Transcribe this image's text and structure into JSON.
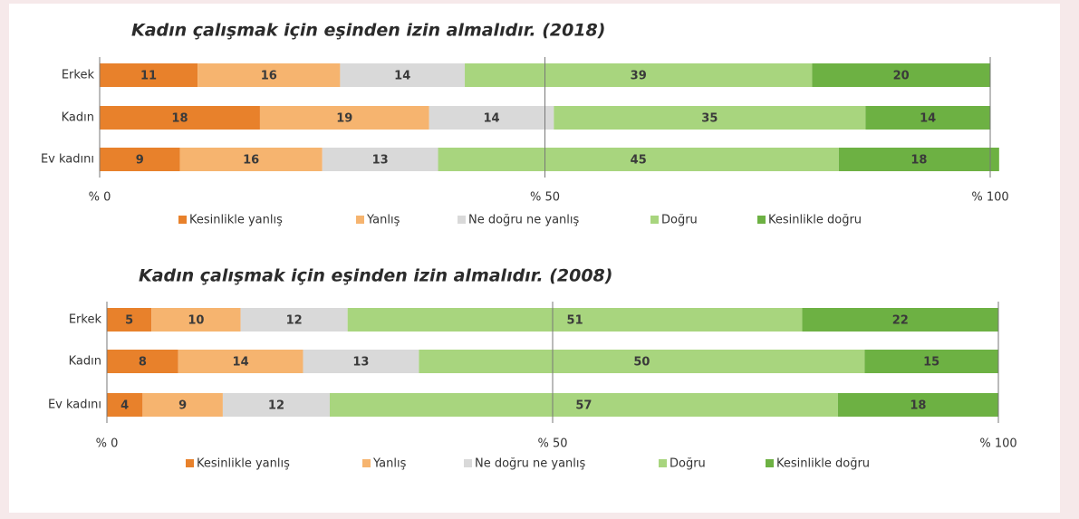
{
  "chart_data": [
    {
      "type": "bar",
      "orientation": "horizontal",
      "stacked": true,
      "title": "Kadın çalışmak için eşinden izin almalıdır. (2018)",
      "categories": [
        "Erkek",
        "Kadın",
        "Ev kadını"
      ],
      "series": [
        {
          "name": "Kesinlikle yanlış",
          "color": "#e8812b",
          "values": [
            11,
            18,
            9
          ]
        },
        {
          "name": "Yanlış",
          "color": "#f6b46f",
          "values": [
            16,
            19,
            16
          ]
        },
        {
          "name": "Ne doğru ne yanlış",
          "color": "#d9d9d9",
          "values": [
            14,
            14,
            13
          ]
        },
        {
          "name": "Doğru",
          "color": "#a8d57e",
          "values": [
            39,
            35,
            45
          ]
        },
        {
          "name": "Kesinlikle doğru",
          "color": "#6db143",
          "values": [
            20,
            14,
            18
          ]
        }
      ],
      "xlim": [
        0,
        100
      ],
      "xticks": [
        {
          "value": 0,
          "label": "% 0"
        },
        {
          "value": 50,
          "label": "% 50"
        },
        {
          "value": 100,
          "label": "% 100"
        }
      ],
      "legend": "bottom"
    },
    {
      "type": "bar",
      "orientation": "horizontal",
      "stacked": true,
      "title": "Kadın çalışmak için eşinden izin almalıdır. (2008)",
      "categories": [
        "Erkek",
        "Kadın",
        "Ev kadını"
      ],
      "series": [
        {
          "name": "Kesinlikle yanlış",
          "color": "#e8812b",
          "values": [
            5,
            8,
            4
          ]
        },
        {
          "name": "Yanlış",
          "color": "#f6b46f",
          "values": [
            10,
            14,
            9
          ]
        },
        {
          "name": "Ne doğru ne yanlış",
          "color": "#d9d9d9",
          "values": [
            12,
            13,
            12
          ]
        },
        {
          "name": "Doğru",
          "color": "#a8d57e",
          "values": [
            51,
            50,
            57
          ]
        },
        {
          "name": "Kesinlikle doğru",
          "color": "#6db143",
          "values": [
            22,
            15,
            18
          ]
        }
      ],
      "xlim": [
        0,
        100
      ],
      "xticks": [
        {
          "value": 0,
          "label": "% 0"
        },
        {
          "value": 50,
          "label": "% 50"
        },
        {
          "value": 100,
          "label": "% 100"
        }
      ],
      "legend": "bottom"
    }
  ]
}
